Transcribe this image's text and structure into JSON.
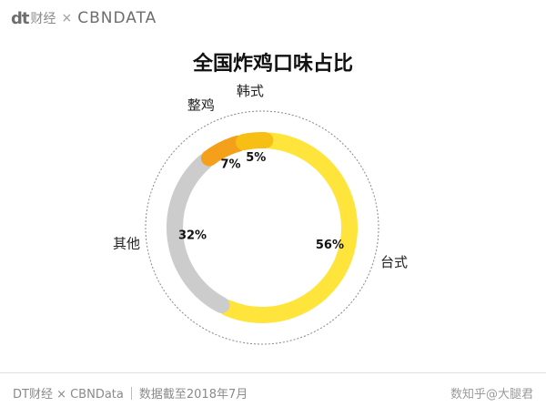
{
  "header": {
    "logo": "dt",
    "brand_cn": "财经",
    "times": "×",
    "brand_en": "CBNDATA"
  },
  "chart_data": {
    "type": "pie",
    "title": "全国炸鸡口味占比",
    "categories": [
      "台式",
      "其他",
      "整鸡",
      "韩式"
    ],
    "values": [
      56,
      32,
      7,
      5
    ],
    "value_labels": [
      "56%",
      "32%",
      "7%",
      "5%"
    ],
    "colors": [
      "#ffe53b",
      "#cccccc",
      "#f5a01a",
      "#f7bf14"
    ]
  },
  "footer": {
    "source": "DT财经 × CBNData",
    "date_note": "数据截至2018年7月",
    "watermark": "数知乎@大腿君"
  }
}
